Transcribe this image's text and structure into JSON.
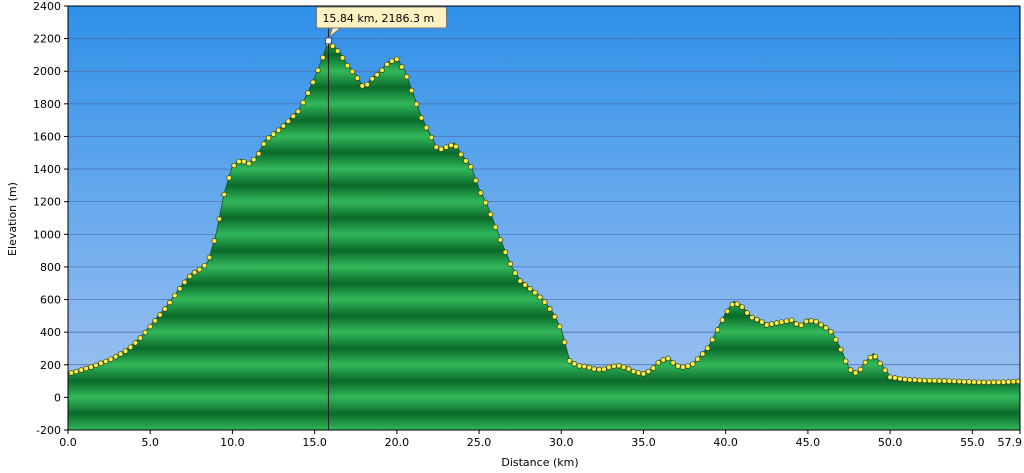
{
  "chart_data": {
    "type": "area",
    "xlabel": "Distance   (km)",
    "ylabel": "Elevation (m)",
    "xlim": [
      0,
      57.9
    ],
    "ylim": [
      -200,
      2400
    ],
    "x_ticks": [
      "0.0",
      "5.0",
      "10.0",
      "15.0",
      "20.0",
      "25.0",
      "30.0",
      "35.0",
      "40.0",
      "45.0",
      "50.0",
      "55.0",
      "57.9"
    ],
    "y_ticks": [
      "-200",
      "0",
      "200",
      "400",
      "600",
      "800",
      "1000",
      "1200",
      "1400",
      "1600",
      "1800",
      "2000",
      "2200",
      "2400"
    ],
    "grid": true,
    "marker": {
      "x": 15.84,
      "y": 2186.3,
      "label": "15.84 km, 2186.3 m"
    },
    "series": [
      {
        "x": [
          0,
          0.5,
          1,
          1.5,
          2,
          2.5,
          3,
          3.5,
          4,
          4.5,
          5,
          5.5,
          6,
          6.5,
          7,
          7.5,
          8,
          8.5,
          9,
          9.5,
          10,
          10.5,
          11,
          11.5,
          12,
          12.5,
          13,
          13.5,
          14,
          14.5,
          15,
          15.5,
          15.84,
          16.5,
          17,
          17.5,
          18,
          18.5,
          19,
          19.5,
          20,
          20.5,
          21,
          21.5,
          22,
          22.5,
          23,
          23.5,
          24,
          24.5,
          25,
          25.5,
          26,
          26.5,
          27,
          27.5,
          28,
          28.5,
          29,
          29.5,
          30,
          30.5,
          31,
          31.5,
          32,
          32.5,
          33,
          33.5,
          34,
          34.5,
          35,
          35.5,
          36,
          36.5,
          37,
          37.5,
          38,
          38.5,
          39,
          39.5,
          40,
          40.5,
          41,
          41.5,
          42,
          42.5,
          43,
          43.5,
          44,
          44.5,
          45,
          45.5,
          46,
          46.5,
          47,
          47.5,
          48,
          48.5,
          49,
          49.5,
          50,
          51,
          52,
          53,
          54,
          55,
          56,
          57,
          57.9
        ],
        "values": [
          150,
          165,
          180,
          195,
          215,
          235,
          260,
          290,
          330,
          380,
          440,
          500,
          560,
          630,
          700,
          760,
          790,
          830,
          1000,
          1250,
          1420,
          1460,
          1440,
          1480,
          1580,
          1620,
          1660,
          1710,
          1760,
          1850,
          1960,
          2090,
          2186.3,
          2120,
          2040,
          1980,
          1900,
          1960,
          2000,
          2060,
          2080,
          2000,
          1860,
          1720,
          1620,
          1520,
          1540,
          1560,
          1480,
          1420,
          1280,
          1180,
          1050,
          920,
          800,
          720,
          680,
          640,
          590,
          520,
          420,
          230,
          200,
          195,
          180,
          175,
          195,
          200,
          185,
          160,
          150,
          175,
          230,
          245,
          200,
          190,
          210,
          260,
          320,
          420,
          520,
          590,
          560,
          500,
          480,
          450,
          460,
          470,
          480,
          440,
          480,
          470,
          440,
          400,
          300,
          180,
          150,
          220,
          270,
          200,
          130,
          115,
          110,
          108,
          105,
          100,
          98,
          100,
          105
        ]
      }
    ]
  },
  "colors": {
    "plot_top": "#2e90e8",
    "plot_bottom": "#9fc1f0",
    "fill_light": "#32b85a",
    "fill_dark": "#0a6a2a",
    "dot": "#f3f04a",
    "dot_stroke": "#3a3a10",
    "tooltip_bg": "#fdf3c2",
    "grid": "#4b6ea8"
  }
}
